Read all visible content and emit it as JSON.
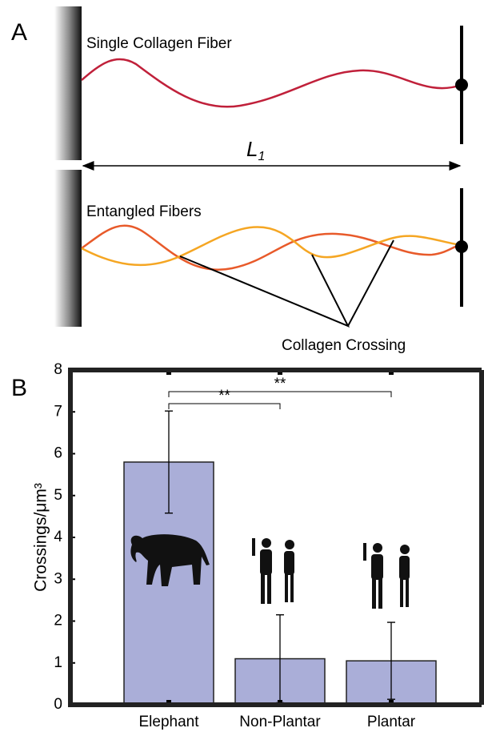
{
  "diagram": {
    "panel_label": "A",
    "fiber_label": "Single Collagen Fiber",
    "length_label": "L",
    "length_subscript": "1",
    "entangled_label": "Entangled Fibers",
    "crossing_label": "Collagen Crossing"
  },
  "chart_data": {
    "type": "bar",
    "panel_label": "B",
    "ylabel": "Crossings/μm³",
    "categories": [
      "Elephant",
      "Non-Plantar",
      "Plantar"
    ],
    "values": [
      5.8,
      1.1,
      1.05
    ],
    "errors": [
      1.22,
      1.05,
      0.92
    ],
    "color": "#aaaed8",
    "ylim": [
      0,
      8
    ],
    "yticks": [
      0,
      1,
      2,
      3,
      4,
      5,
      6,
      7,
      8
    ],
    "grid": false,
    "annotations": [
      "**",
      "**"
    ]
  }
}
